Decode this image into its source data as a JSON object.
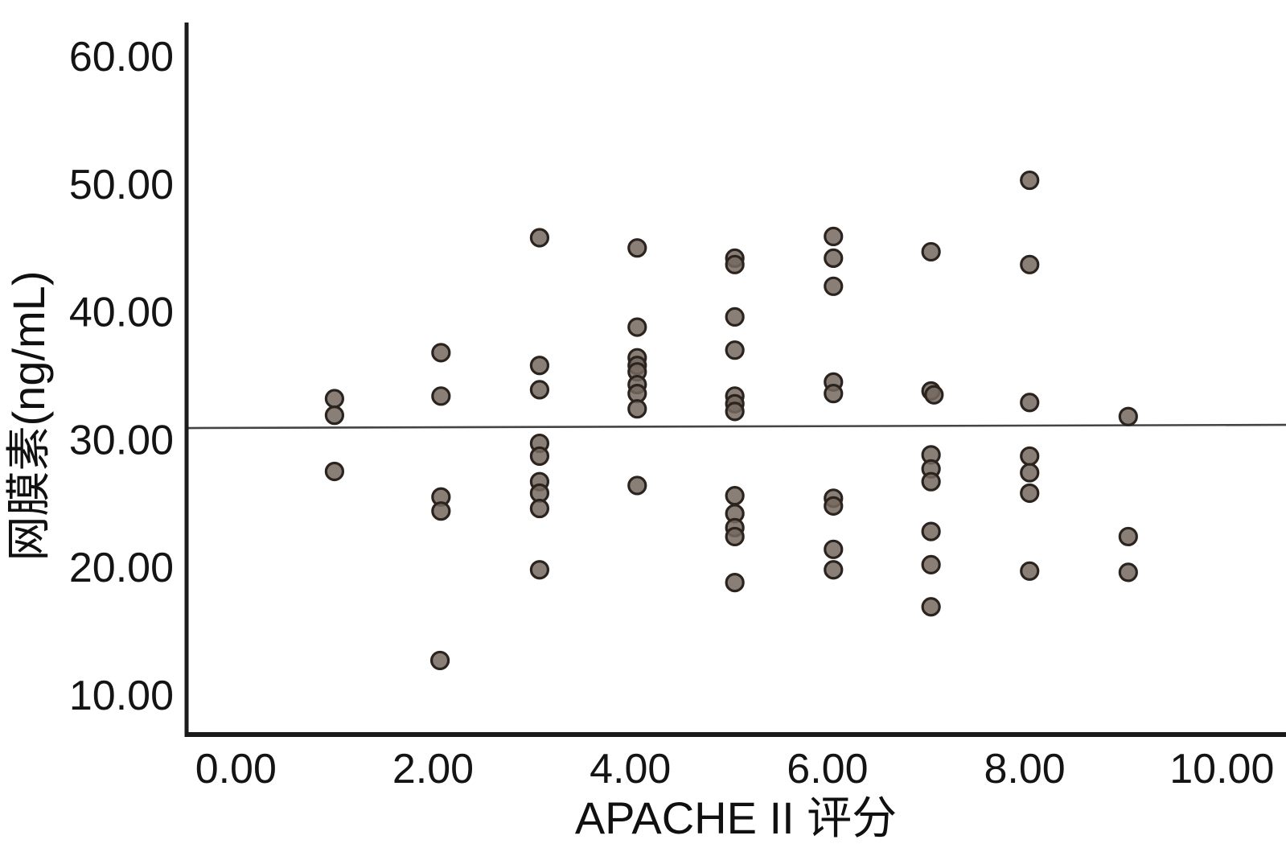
{
  "figure": {
    "kind": "statistical-scatter-figure",
    "background": "#ffffff"
  },
  "chart_data": {
    "type": "scatter",
    "title": "",
    "xlabel": "APACHE II 评分",
    "ylabel": "网膜素(ng/mL)",
    "xlim": [
      -0.5,
      10.65
    ],
    "ylim": [
      6.9,
      62.65
    ],
    "grid": false,
    "legend": "none",
    "x_ticks": [
      0,
      2,
      4,
      6,
      8,
      10
    ],
    "x_tick_labels": [
      "0.00",
      "2.00",
      "4.00",
      "6.00",
      "8.00",
      "10.00"
    ],
    "y_ticks": [
      10,
      20,
      30,
      40,
      50,
      60
    ],
    "y_tick_labels": [
      "10.00",
      "20.00",
      "30.00",
      "40.00",
      "50.00",
      "60.00"
    ],
    "colors": {
      "point_fill": "#75695f",
      "point_stroke": "#2a231e",
      "axis": "#1a1a1a",
      "fit_line": "#444444",
      "text": "#111111",
      "background": "#ffffff"
    },
    "point_style": {
      "radius": 10.5,
      "stroke_width": 3.2,
      "fill_opacity": 0.85
    },
    "fit_line": {
      "x1": -0.48,
      "y1": 30.9,
      "x2": 10.65,
      "y2": 31.15,
      "width": 2.6
    },
    "points": [
      [
        1.0,
        33.2
      ],
      [
        1.0,
        31.9
      ],
      [
        1.0,
        27.5
      ],
      [
        2.08,
        36.8
      ],
      [
        2.08,
        33.4
      ],
      [
        2.08,
        25.5
      ],
      [
        2.08,
        24.4
      ],
      [
        2.07,
        12.7
      ],
      [
        3.08,
        45.8
      ],
      [
        3.08,
        35.8
      ],
      [
        3.08,
        33.9
      ],
      [
        3.08,
        29.7
      ],
      [
        3.08,
        28.7
      ],
      [
        3.08,
        26.7
      ],
      [
        3.08,
        25.8
      ],
      [
        3.08,
        24.6
      ],
      [
        3.08,
        19.8
      ],
      [
        4.07,
        45.0
      ],
      [
        4.07,
        38.8
      ],
      [
        4.07,
        36.4
      ],
      [
        4.07,
        35.8
      ],
      [
        4.07,
        35.3
      ],
      [
        4.07,
        34.3
      ],
      [
        4.07,
        33.6
      ],
      [
        4.07,
        32.4
      ],
      [
        4.07,
        26.4
      ],
      [
        5.06,
        44.2
      ],
      [
        5.06,
        43.7
      ],
      [
        5.06,
        39.6
      ],
      [
        5.06,
        37.0
      ],
      [
        5.06,
        33.4
      ],
      [
        5.06,
        32.8
      ],
      [
        5.06,
        32.2
      ],
      [
        5.06,
        25.6
      ],
      [
        5.06,
        24.2
      ],
      [
        5.06,
        23.1
      ],
      [
        5.06,
        22.4
      ],
      [
        5.06,
        18.8
      ],
      [
        6.06,
        45.9
      ],
      [
        6.06,
        44.2
      ],
      [
        6.06,
        42.0
      ],
      [
        6.06,
        34.5
      ],
      [
        6.06,
        33.6
      ],
      [
        6.06,
        25.4
      ],
      [
        6.06,
        24.8
      ],
      [
        6.06,
        21.4
      ],
      [
        6.06,
        19.8
      ],
      [
        7.05,
        44.7
      ],
      [
        7.05,
        33.8
      ],
      [
        7.08,
        33.5
      ],
      [
        7.05,
        28.8
      ],
      [
        7.05,
        27.7
      ],
      [
        7.05,
        26.7
      ],
      [
        7.05,
        22.8
      ],
      [
        7.05,
        20.2
      ],
      [
        7.05,
        16.9
      ],
      [
        8.05,
        50.3
      ],
      [
        8.05,
        43.7
      ],
      [
        8.05,
        32.9
      ],
      [
        8.05,
        28.7
      ],
      [
        8.05,
        27.4
      ],
      [
        8.05,
        25.8
      ],
      [
        8.05,
        19.7
      ],
      [
        9.05,
        31.8
      ],
      [
        9.05,
        22.4
      ],
      [
        9.05,
        19.6
      ]
    ]
  }
}
